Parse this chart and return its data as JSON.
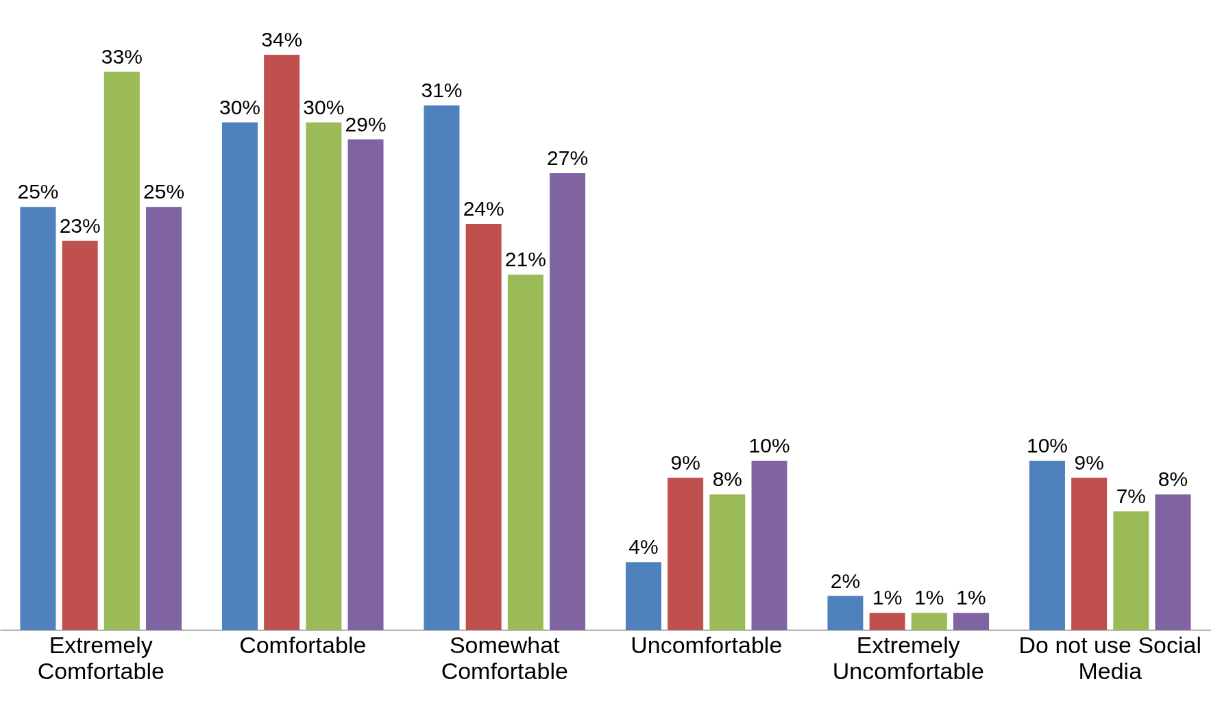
{
  "chart_data": {
    "type": "bar",
    "categories": [
      "Extremely Comfortable",
      "Comfortable",
      "Somewhat Comfortable",
      "Uncomfortable",
      "Extremely Uncomfortable",
      "Do not use Social Media"
    ],
    "series": [
      {
        "color": "#4f81bd",
        "values": [
          25,
          30,
          31,
          4,
          2,
          10
        ],
        "value_labels": [
          "25%",
          "30%",
          "31%",
          "4%",
          "2%",
          "10%"
        ]
      },
      {
        "color": "#c0504d",
        "values": [
          23,
          34,
          24,
          9,
          1,
          9
        ],
        "value_labels": [
          "23%",
          "34%",
          "24%",
          "9%",
          "1%",
          "9%"
        ]
      },
      {
        "color": "#9bbb59",
        "values": [
          33,
          30,
          21,
          8,
          1,
          7
        ],
        "value_labels": [
          "33%",
          "30%",
          "21%",
          "8%",
          "1%",
          "7%"
        ]
      },
      {
        "color": "#8064a2",
        "values": [
          25,
          29,
          27,
          10,
          1,
          8
        ],
        "value_labels": [
          "25%",
          "29%",
          "27%",
          "10%",
          "1%",
          "8%"
        ]
      }
    ]
  }
}
